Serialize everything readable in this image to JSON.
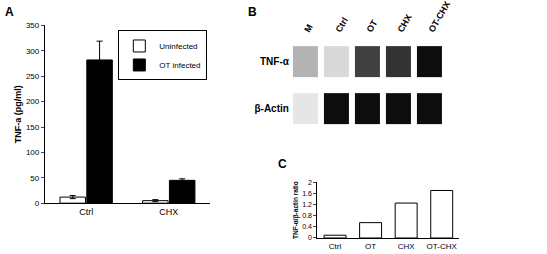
{
  "chart_data": [
    {
      "type": "bar",
      "title": "A",
      "y_label": "TNF-a (pg/ml)",
      "categories": [
        "Ctrl",
        "CHX"
      ],
      "series": [
        {
          "name": "Uninfected",
          "color": "#ffffff",
          "values": [
            12,
            5
          ],
          "errors": [
            3,
            2
          ]
        },
        {
          "name": "OT infected",
          "color": "#000000",
          "values": [
            282,
            45
          ],
          "errors": [
            37,
            3
          ]
        }
      ],
      "ylim": [
        0,
        350
      ],
      "yticks": [
        0,
        50,
        100,
        150,
        200,
        250,
        300,
        350
      ],
      "grid": false,
      "legend": "upper right"
    },
    {
      "type": "heatmap",
      "title": "B",
      "categories": [
        "M",
        "Ctrl",
        "OT",
        "CHX",
        "OT-CHX"
      ],
      "rows": [
        "TNF-α",
        "β-Actin"
      ],
      "cells": [
        [
          0.3,
          0.15,
          0.75,
          0.8,
          0.95
        ],
        [
          0.1,
          0.95,
          0.95,
          0.95,
          0.95
        ]
      ]
    },
    {
      "type": "bar",
      "title": "C",
      "y_label": "TNF-α/β-actin ratio",
      "categories": [
        "Ctrl",
        "OT",
        "CHX",
        "OT-CHX"
      ],
      "values": [
        0.1,
        0.55,
        1.25,
        1.7
      ],
      "color": "#ffffff",
      "ylim": [
        0,
        2
      ],
      "yticks": [
        0,
        0.4,
        0.8,
        1.2,
        1.6,
        2
      ],
      "grid": false
    }
  ]
}
